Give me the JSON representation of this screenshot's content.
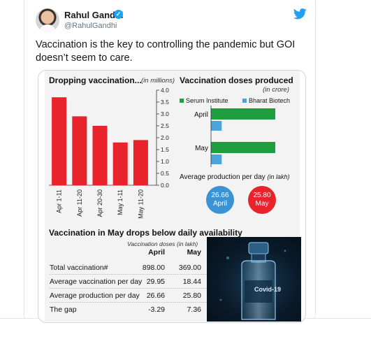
{
  "tweet": {
    "author_name": "Rahul Gandhi",
    "handle": "@RahulGandhi",
    "text": "Vaccination is the key to controlling the pandemic but GOI doesn’t seem to care."
  },
  "infographic": {
    "chart_data": [
      {
        "type": "bar",
        "title": "Dropping vaccination...",
        "unit_label": "(in millions)",
        "categories": [
          "Apr 1-11",
          "Apr 11-20",
          "Apr 20-30",
          "May 1-11",
          "May 11-20"
        ],
        "values": [
          3.7,
          2.9,
          2.5,
          1.8,
          1.9
        ],
        "ylim": [
          0,
          4.0
        ],
        "yticks": [
          "4.0",
          "3.5",
          "3.0",
          "2.5",
          "2.0",
          "1.5",
          "1.0",
          "0.5",
          "0.0"
        ],
        "colors": [
          "#e8232b"
        ]
      },
      {
        "type": "bar",
        "orientation": "horizontal",
        "title": "Vaccination doses produced",
        "unit_label": "(in crore)",
        "categories": [
          "April",
          "May"
        ],
        "series": [
          {
            "name": "Serum Institute",
            "values": [
              6.0,
              6.0
            ],
            "color": "#1e9e3e"
          },
          {
            "name": "Bharat Biotech",
            "values": [
              1.0,
              1.0
            ],
            "color": "#4ea3d9"
          }
        ]
      }
    ],
    "avg_production": {
      "title": "Average production per day",
      "unit_label": "(in lakh)",
      "april": {
        "value": "26.66",
        "label": "April",
        "color": "#3b93d4"
      },
      "may": {
        "value": "25.80",
        "label": "May",
        "color": "#e8232b"
      }
    },
    "table": {
      "title": "Vaccination in May drops below daily availability",
      "subtitle": "Vaccination doses (in lakh)",
      "col1": "April",
      "col2": "May",
      "rows": [
        {
          "label": "Total vaccination#",
          "april": "898.00",
          "may": "369.00"
        },
        {
          "label": "Average vaccination per day",
          "april": "29.95",
          "may": "18.44"
        },
        {
          "label": "Average production per day",
          "april": "26.66",
          "may": "25.80"
        },
        {
          "label": "The gap",
          "april": "-3.29",
          "may": "7.36"
        }
      ]
    },
    "photo_text": "Covid-19"
  }
}
